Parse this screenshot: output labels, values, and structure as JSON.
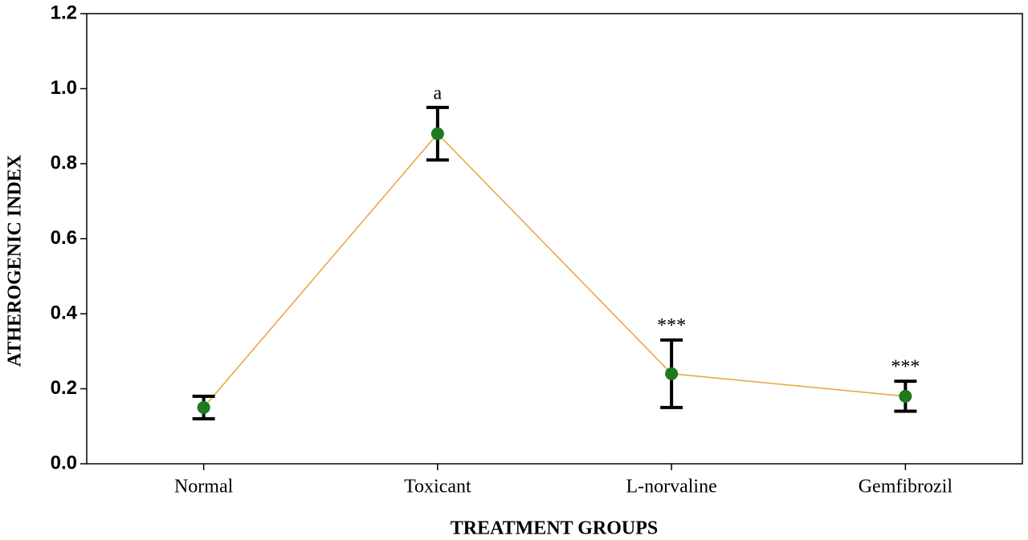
{
  "chart_data": {
    "type": "line",
    "x_label": "TREATMENT GROUPS",
    "y_label": "ATHEROGENIC INDEX",
    "categories": [
      "Normal",
      "Toxicant",
      "L-norvaline",
      "Gemfibrozil"
    ],
    "series": [
      {
        "color": "#e8a33c",
        "marker_color": "#1e7a1e",
        "values": [
          0.15,
          0.88,
          0.24,
          0.18
        ],
        "errors": [
          0.03,
          0.07,
          0.09,
          0.04
        ]
      }
    ],
    "annotations": [
      {
        "text": "a",
        "x": "Toxicant"
      },
      {
        "text": "***",
        "x": "L-norvaline"
      },
      {
        "text": "***",
        "x": "Gemfibrozil"
      }
    ],
    "ylim": [
      0,
      1.2
    ],
    "yticks": [
      {
        "value": 0,
        "label": "0.0"
      },
      0.2,
      0.4,
      0.6,
      0.8,
      {
        "value": 1,
        "label": "1.0"
      },
      1.2
    ]
  }
}
